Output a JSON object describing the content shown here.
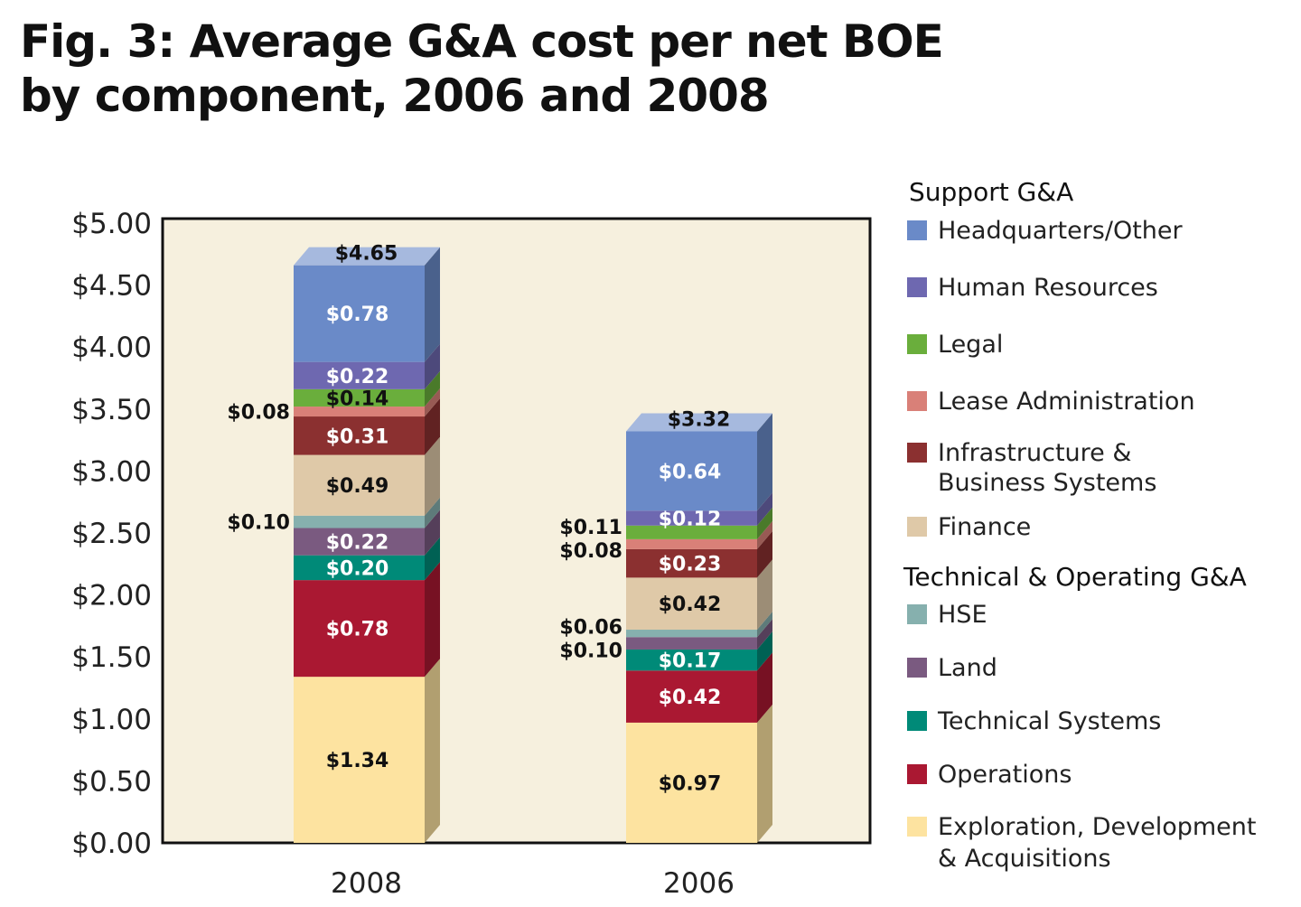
{
  "chart_data": {
    "type": "bar",
    "stacked": true,
    "title": "Fig. 3: Average G&A cost per net BOE by component, 2006 and 2008",
    "title_lines": [
      "Fig. 3: Average G&A cost per net BOE",
      "by component, 2006 and 2008"
    ],
    "categories": [
      "2008",
      "2006"
    ],
    "ylim": [
      0,
      5
    ],
    "yticks": [
      "$0.00",
      "$0.50",
      "$1.00",
      "$1.50",
      "$2.00",
      "$2.50",
      "$3.00",
      "$3.50",
      "$4.00",
      "$4.50",
      "$5.00"
    ],
    "totals": [
      "$4.65",
      "$3.32"
    ],
    "background": "#f6f0de",
    "legend_placement": "right",
    "groups": [
      {
        "name": "Support G&A",
        "series": [
          "Headquarters/Other",
          "Human Resources",
          "Legal",
          "Lease Administration",
          "Infrastructure & Business Systems",
          "Finance"
        ]
      },
      {
        "name": "Technical & Operating G&A",
        "series": [
          "HSE",
          "Land",
          "Technical Systems",
          "Operations",
          "Exploration, Development & Acquisitions"
        ]
      }
    ],
    "series": [
      {
        "name": "Exploration, Development & Acquisitions",
        "legend_lines": [
          "Exploration, Development",
          "& Acquisitions"
        ],
        "color": "#fde3a0",
        "values": [
          1.34,
          0.97
        ],
        "labels": [
          "$1.34",
          "$0.97"
        ]
      },
      {
        "name": "Operations",
        "color": "#aa1832",
        "values": [
          0.78,
          0.42
        ],
        "labels": [
          "$0.78",
          "$0.42"
        ]
      },
      {
        "name": "Technical Systems",
        "color": "#008a78",
        "values": [
          0.2,
          0.17
        ],
        "labels": [
          "$0.20",
          "$0.17"
        ]
      },
      {
        "name": "Land",
        "color": "#7a5a80",
        "values": [
          0.22,
          0.1
        ],
        "labels": [
          "$0.22",
          "$0.10"
        ]
      },
      {
        "name": "HSE",
        "color": "#86b0ae",
        "values": [
          0.1,
          0.06
        ],
        "labels": [
          "$0.10",
          "$0.06"
        ]
      },
      {
        "name": "Finance",
        "color": "#dfc9a8",
        "values": [
          0.49,
          0.42
        ],
        "labels": [
          "$0.49",
          "$0.42"
        ]
      },
      {
        "name": "Infrastructure & Business Systems",
        "legend_lines": [
          "Infrastructure &",
          "Business Systems"
        ],
        "color": "#8b3030",
        "values": [
          0.31,
          0.23
        ],
        "labels": [
          "$0.31",
          "$0.23"
        ]
      },
      {
        "name": "Lease Administration",
        "color": "#d98078",
        "values": [
          0.08,
          0.08
        ],
        "labels": [
          "$0.08",
          "$0.08"
        ]
      },
      {
        "name": "Legal",
        "color": "#6aae3c",
        "values": [
          0.14,
          0.11
        ],
        "labels": [
          "$0.14",
          "$0.11"
        ]
      },
      {
        "name": "Human Resources",
        "color": "#6e68b0",
        "values": [
          0.22,
          0.12
        ],
        "labels": [
          "$0.22",
          "$0.12"
        ]
      },
      {
        "name": "Headquarters/Other",
        "color": "#6a8ac8",
        "values": [
          0.78,
          0.64
        ],
        "labels": [
          "$0.78",
          "$0.64"
        ]
      }
    ]
  }
}
